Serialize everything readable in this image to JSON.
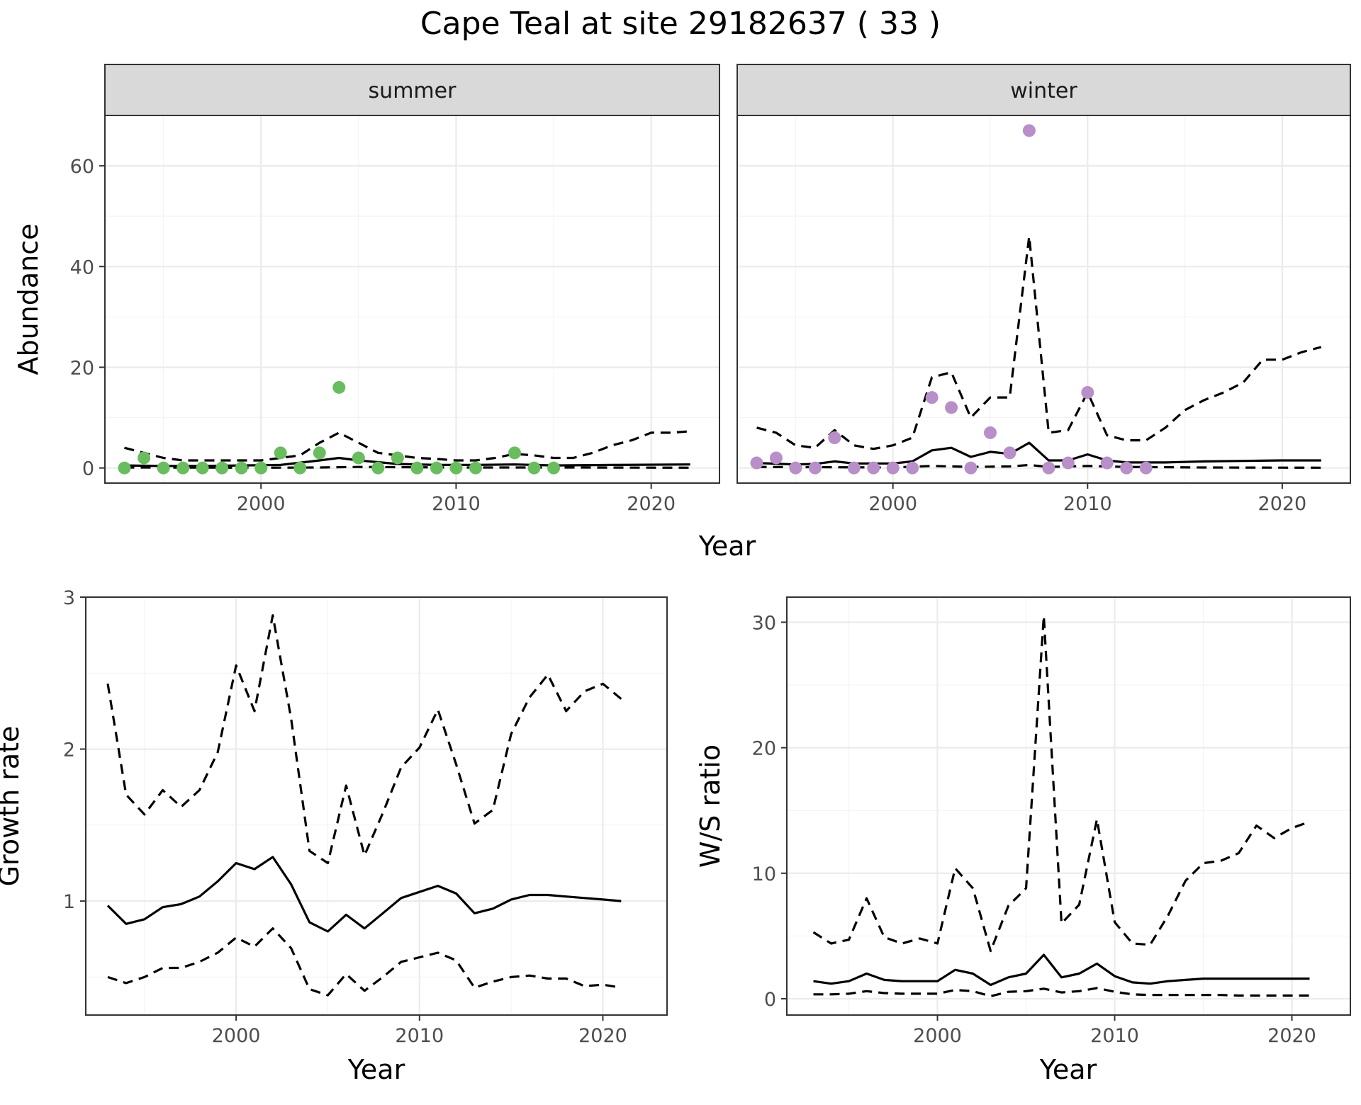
{
  "title": "Cape Teal at site 29182637 ( 33 )",
  "colors": {
    "summer_points": "#6abd5e",
    "winter_points": "#b88fc8",
    "line": "#000000"
  },
  "chart_data": [
    {
      "id": "abundance-summer",
      "type": "line",
      "facet": "summer",
      "ylabel": "Abundance",
      "xlabel": "Year",
      "xlim": [
        1992,
        2023.5
      ],
      "ylim": [
        -3,
        70
      ],
      "xticks": [
        2000,
        2010,
        2020
      ],
      "yticks": [
        0,
        20,
        40,
        60
      ],
      "points": {
        "x": [
          1993,
          1994,
          1995,
          1996,
          1997,
          1998,
          1999,
          2000,
          2001,
          2002,
          2003,
          2004,
          2005,
          2006,
          2007,
          2008,
          2009,
          2010,
          2011,
          2013,
          2014,
          2015
        ],
        "y": [
          0,
          2,
          0,
          0,
          0,
          0,
          0,
          0,
          3,
          0,
          3,
          16,
          2,
          0,
          2,
          0,
          0,
          0,
          0,
          3,
          0,
          0
        ]
      },
      "series": [
        {
          "style": "solid",
          "x": [
            1993,
            1995,
            1997,
            1999,
            2001,
            2003,
            2004,
            2005,
            2007,
            2009,
            2011,
            2013,
            2015,
            2018,
            2022
          ],
          "y": [
            0.5,
            0.4,
            0.4,
            0.5,
            0.6,
            1.5,
            2,
            1.5,
            0.8,
            0.6,
            0.6,
            0.7,
            0.5,
            0.6,
            0.7
          ]
        },
        {
          "style": "dashed",
          "x": [
            1993,
            1994,
            1995,
            1996,
            1997,
            1998,
            1999,
            2000,
            2001,
            2002,
            2003,
            2004,
            2005,
            2006,
            2007,
            2008,
            2009,
            2010,
            2011,
            2012,
            2013,
            2014,
            2015,
            2016,
            2017,
            2018,
            2019,
            2020,
            2021,
            2022
          ],
          "y": [
            4,
            3,
            2,
            1.5,
            1.5,
            1.5,
            1.5,
            1.5,
            2,
            2.5,
            5,
            7,
            5,
            3,
            2.5,
            2,
            1.8,
            1.5,
            1.5,
            2,
            2.8,
            2.5,
            2,
            2,
            3,
            4.5,
            5.5,
            7,
            7,
            7.3
          ]
        },
        {
          "style": "dashed",
          "x": [
            1993,
            2000,
            2003,
            2005,
            2010,
            2015,
            2022
          ],
          "y": [
            0.1,
            0.05,
            0.1,
            0.2,
            0.1,
            0.1,
            0.05
          ]
        }
      ]
    },
    {
      "id": "abundance-winter",
      "type": "line",
      "facet": "winter",
      "xlabel": "Year",
      "xlim": [
        1992,
        2023.5
      ],
      "ylim": [
        -3,
        70
      ],
      "xticks": [
        2000,
        2010,
        2020
      ],
      "points": {
        "x": [
          1993,
          1994,
          1995,
          1996,
          1997,
          1998,
          1999,
          2000,
          2001,
          2002,
          2003,
          2004,
          2005,
          2006,
          2007,
          2008,
          2009,
          2010,
          2011,
          2012,
          2013
        ],
        "y": [
          1,
          2,
          0,
          0,
          6,
          0,
          0,
          0,
          0,
          14,
          12,
          0,
          7,
          3,
          67,
          0,
          1,
          15,
          1,
          0,
          0
        ]
      },
      "series": [
        {
          "style": "solid",
          "x": [
            1993,
            1995,
            1996,
            1997,
            1998,
            2000,
            2001,
            2002,
            2003,
            2004,
            2005,
            2006,
            2007,
            2008,
            2009,
            2010,
            2011,
            2012,
            2014,
            2016,
            2018,
            2020,
            2022
          ],
          "y": [
            1,
            0.7,
            0.8,
            1.3,
            0.9,
            0.9,
            1.3,
            3.5,
            4,
            2.2,
            3.2,
            2.8,
            5,
            1.5,
            1.5,
            2.7,
            1.5,
            1.1,
            1.1,
            1.3,
            1.4,
            1.5,
            1.5
          ]
        },
        {
          "style": "dashed",
          "x": [
            1993,
            1994,
            1995,
            1996,
            1997,
            1998,
            1999,
            2000,
            2001,
            2002,
            2003,
            2004,
            2005,
            2006,
            2007,
            2008,
            2009,
            2010,
            2011,
            2012,
            2013,
            2014,
            2015,
            2016,
            2017,
            2018,
            2019,
            2020,
            2021,
            2022
          ],
          "y": [
            8,
            7,
            4.5,
            4,
            7.5,
            4.5,
            3.8,
            4.5,
            6,
            18,
            19,
            10,
            14,
            14,
            46,
            7,
            7.5,
            15,
            6.5,
            5.5,
            5.5,
            8,
            11.5,
            13.5,
            15,
            17,
            21.5,
            21.5,
            23,
            24
          ]
        },
        {
          "style": "dashed",
          "x": [
            1993,
            2000,
            2002,
            2004,
            2006,
            2007,
            2008,
            2010,
            2012,
            2016,
            2022
          ],
          "y": [
            0.2,
            0.1,
            0.4,
            0.2,
            0.3,
            0.6,
            0.2,
            0.4,
            0.2,
            0.1,
            0.05
          ]
        }
      ]
    },
    {
      "id": "growth-rate",
      "type": "line",
      "ylabel": "Growth rate",
      "xlabel": "Year",
      "xlim": [
        1991.8,
        2023.5
      ],
      "ylim": [
        0.25,
        3
      ],
      "xticks": [
        2000,
        2010,
        2020
      ],
      "yticks": [
        1,
        2,
        3
      ],
      "series": [
        {
          "style": "solid",
          "x": [
            1993,
            1994,
            1995,
            1996,
            1997,
            1998,
            1999,
            2000,
            2001,
            2002,
            2003,
            2004,
            2005,
            2006,
            2007,
            2008,
            2009,
            2010,
            2011,
            2012,
            2013,
            2014,
            2015,
            2016,
            2017,
            2018,
            2019,
            2020,
            2021
          ],
          "y": [
            0.97,
            0.85,
            0.88,
            0.96,
            0.98,
            1.03,
            1.13,
            1.25,
            1.21,
            1.29,
            1.11,
            0.86,
            0.8,
            0.91,
            0.82,
            0.92,
            1.02,
            1.06,
            1.1,
            1.05,
            0.92,
            0.95,
            1.01,
            1.04,
            1.04,
            1.03,
            1.02,
            1.01,
            1.0
          ]
        },
        {
          "style": "dashed",
          "x": [
            1993,
            1994,
            1995,
            1996,
            1997,
            1998,
            1999,
            2000,
            2001,
            2002,
            2003,
            2004,
            2005,
            2006,
            2007,
            2008,
            2009,
            2010,
            2011,
            2012,
            2013,
            2014,
            2015,
            2016,
            2017,
            2018,
            2019,
            2020,
            2021
          ],
          "y": [
            2.43,
            1.7,
            1.57,
            1.73,
            1.62,
            1.73,
            1.98,
            2.55,
            2.25,
            2.88,
            2.2,
            1.33,
            1.25,
            1.76,
            1.3,
            1.58,
            1.88,
            2.01,
            2.26,
            1.9,
            1.51,
            1.6,
            2.1,
            2.34,
            2.49,
            2.25,
            2.38,
            2.43,
            2.33
          ]
        },
        {
          "style": "dashed",
          "x": [
            1993,
            1994,
            1995,
            1996,
            1997,
            1998,
            1999,
            2000,
            2001,
            2002,
            2003,
            2004,
            2005,
            2006,
            2007,
            2008,
            2009,
            2010,
            2011,
            2012,
            2013,
            2014,
            2015,
            2016,
            2017,
            2018,
            2019,
            2020,
            2021
          ],
          "y": [
            0.5,
            0.46,
            0.5,
            0.56,
            0.56,
            0.6,
            0.66,
            0.76,
            0.7,
            0.82,
            0.69,
            0.42,
            0.38,
            0.52,
            0.41,
            0.5,
            0.6,
            0.63,
            0.66,
            0.61,
            0.43,
            0.47,
            0.5,
            0.51,
            0.49,
            0.49,
            0.44,
            0.45,
            0.43
          ]
        }
      ]
    },
    {
      "id": "ws-ratio",
      "type": "line",
      "ylabel": "W/S ratio",
      "xlabel": "Year",
      "xlim": [
        1991.5,
        2023.3
      ],
      "ylim": [
        -1.3,
        32
      ],
      "xticks": [
        2000,
        2010,
        2020
      ],
      "yticks": [
        0,
        10,
        20,
        30
      ],
      "series": [
        {
          "style": "solid",
          "x": [
            1993,
            1994,
            1995,
            1996,
            1997,
            1998,
            1999,
            2000,
            2001,
            2002,
            2003,
            2004,
            2005,
            2006,
            2007,
            2008,
            2009,
            2010,
            2011,
            2012,
            2013,
            2014,
            2015,
            2016,
            2017,
            2018,
            2019,
            2020,
            2021
          ],
          "y": [
            1.4,
            1.2,
            1.4,
            2.0,
            1.5,
            1.4,
            1.4,
            1.4,
            2.3,
            2.0,
            1.1,
            1.7,
            2.0,
            3.5,
            1.7,
            2.0,
            2.8,
            1.8,
            1.3,
            1.2,
            1.4,
            1.5,
            1.6,
            1.6,
            1.6,
            1.6,
            1.6,
            1.6,
            1.6
          ]
        },
        {
          "style": "dashed",
          "x": [
            1993,
            1994,
            1995,
            1996,
            1997,
            1998,
            1999,
            2000,
            2001,
            2002,
            2003,
            2004,
            2005,
            2006,
            2007,
            2008,
            2009,
            2010,
            2011,
            2012,
            2013,
            2014,
            2015,
            2016,
            2017,
            2018,
            2019,
            2020,
            2021
          ],
          "y": [
            5.3,
            4.4,
            4.7,
            8.0,
            4.9,
            4.4,
            4.8,
            4.4,
            10.4,
            8.8,
            3.8,
            7.4,
            8.8,
            30.5,
            6.0,
            7.5,
            14.3,
            6.1,
            4.4,
            4.3,
            6.6,
            9.4,
            10.8,
            11.0,
            11.6,
            13.8,
            12.8,
            13.6,
            14.1
          ]
        },
        {
          "style": "dashed",
          "x": [
            1993,
            1994,
            1995,
            1996,
            1997,
            1998,
            1999,
            2000,
            2001,
            2002,
            2003,
            2004,
            2005,
            2006,
            2007,
            2008,
            2009,
            2010,
            2011,
            2012,
            2013,
            2014,
            2015,
            2016,
            2017,
            2018,
            2019,
            2020,
            2021
          ],
          "y": [
            0.35,
            0.35,
            0.4,
            0.6,
            0.45,
            0.4,
            0.4,
            0.4,
            0.7,
            0.6,
            0.2,
            0.55,
            0.6,
            0.8,
            0.5,
            0.6,
            0.85,
            0.55,
            0.35,
            0.3,
            0.3,
            0.3,
            0.3,
            0.3,
            0.25,
            0.25,
            0.25,
            0.25,
            0.25
          ]
        }
      ]
    }
  ]
}
